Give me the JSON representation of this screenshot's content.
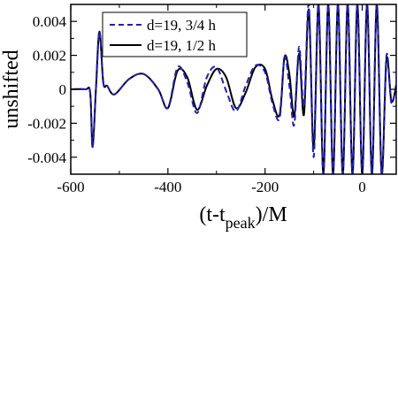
{
  "chart_data": {
    "type": "line",
    "title": "",
    "xlabel_main": "(t-t",
    "xlabel_sub": "peak",
    "xlabel_end": ")/M",
    "ylabel": "unshifted",
    "xlim": [
      -600,
      70
    ],
    "ylim": [
      -0.005,
      0.005
    ],
    "x_ticks": [
      -600,
      -400,
      -200,
      0
    ],
    "y_ticks": [
      -0.004,
      -0.002,
      0,
      0.002,
      0.004
    ],
    "x_tick_labels": [
      "-600",
      "-400",
      "-200",
      "0"
    ],
    "y_tick_labels": [
      "-0.004",
      "-0.002",
      "0",
      "0.002",
      "0.004"
    ],
    "legend_position": "top-left",
    "series": [
      {
        "name": "d=19, 3/4 h",
        "color": "#1f1fbf",
        "style": "dashed",
        "x": [
          -600,
          -570,
          -560,
          -555,
          -548,
          -541,
          -533,
          -525,
          -510,
          -480,
          -450,
          -420,
          -400,
          -380,
          -360,
          -340,
          -320,
          -300,
          -280,
          -260,
          -240,
          -220,
          -200,
          -185,
          -170,
          -160,
          -150,
          -140,
          -130,
          -120,
          -110,
          -100,
          -90,
          -80,
          -70,
          -60,
          -50,
          -40,
          -30,
          -20,
          -10,
          0,
          10,
          20,
          30,
          40,
          50,
          60,
          70
        ],
        "y": [
          0,
          0,
          -0.0002,
          -0.0034,
          0.0001,
          0.0034,
          0.0004,
          0.0002,
          -0.0003,
          0.0006,
          0.0009,
          0,
          -0.0011,
          0.0013,
          0.0004,
          -0.0014,
          0.0007,
          0.0013,
          -0.0001,
          -0.0013,
          0.0002,
          0.0014,
          0.001,
          -0.0008,
          -0.0017,
          0.0019,
          0.0002,
          -0.0021,
          0.0025,
          -0.001,
          0.005,
          -0.004,
          0.005,
          -0.005,
          0.005,
          -0.005,
          0.005,
          -0.005,
          0.005,
          -0.005,
          0.005,
          -0.005,
          0.005,
          -0.005,
          0.005,
          -0.005,
          0.002,
          -0.0008,
          0.0003
        ]
      },
      {
        "name": "d=19, 1/2 h",
        "color": "#000000",
        "style": "solid",
        "x": [
          -600,
          -570,
          -560,
          -555,
          -548,
          -541,
          -533,
          -525,
          -510,
          -480,
          -450,
          -420,
          -400,
          -380,
          -360,
          -340,
          -320,
          -300,
          -280,
          -260,
          -240,
          -220,
          -200,
          -185,
          -170,
          -160,
          -150,
          -140,
          -130,
          -120,
          -110,
          -100,
          -90,
          -80,
          -70,
          -60,
          -50,
          -40,
          -30,
          -20,
          -10,
          0,
          10,
          20,
          30,
          40,
          50,
          60,
          70
        ],
        "y": [
          0,
          0,
          -0.0002,
          -0.0034,
          0.0001,
          0.0034,
          0.0004,
          0.0002,
          -0.0003,
          0.0006,
          0.0009,
          0,
          -0.0011,
          0.0011,
          0.0007,
          -0.0012,
          0.0002,
          0.0012,
          0.0007,
          -0.0011,
          -0.0002,
          0.0013,
          0.0012,
          -0.0006,
          -0.0015,
          0.0019,
          0.0009,
          -0.0016,
          0.0021,
          -0.0015,
          0.0047,
          -0.0035,
          0.005,
          -0.005,
          0.005,
          -0.005,
          0.005,
          -0.005,
          0.005,
          -0.005,
          0.005,
          -0.005,
          0.005,
          -0.005,
          0.005,
          -0.005,
          0.0018,
          -0.0007,
          0.0002
        ]
      }
    ]
  }
}
